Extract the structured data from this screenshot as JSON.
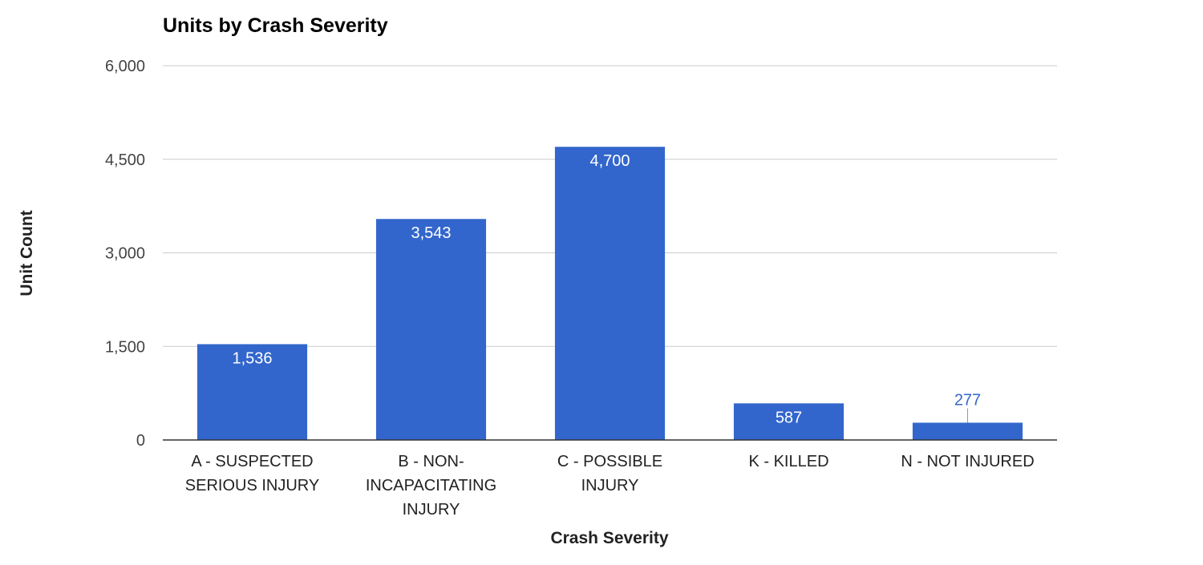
{
  "chart_data": {
    "type": "bar",
    "title": "Units by Crash Severity",
    "xlabel": "Crash Severity",
    "ylabel": "Unit Count",
    "categories": [
      [
        "A - SUSPECTED",
        "SERIOUS INJURY"
      ],
      [
        "B - NON-",
        "INCAPACITATING",
        "INJURY"
      ],
      [
        "C - POSSIBLE",
        "INJURY"
      ],
      [
        "K - KILLED"
      ],
      [
        "N - NOT INJURED"
      ]
    ],
    "values": [
      1536,
      3543,
      4700,
      587,
      277
    ],
    "value_labels": [
      "1,536",
      "3,543",
      "4,700",
      "587",
      "277"
    ],
    "ylim": [
      0,
      6000
    ],
    "yticks": [
      0,
      1500,
      3000,
      4500,
      6000
    ],
    "ytick_labels": [
      "0",
      "1,500",
      "3,000",
      "4,500",
      "6,000"
    ],
    "grid": true,
    "legend": "none",
    "bar_color": "#3366cc"
  }
}
